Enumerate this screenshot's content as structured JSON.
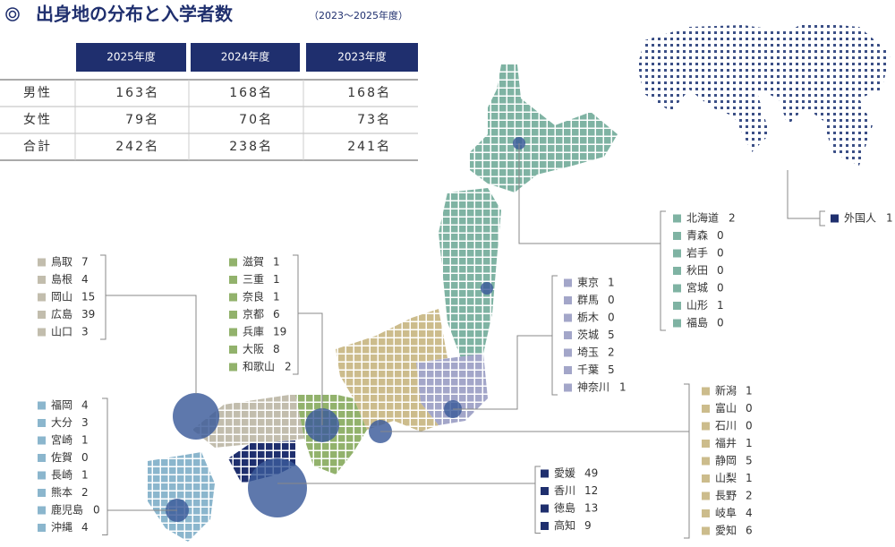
{
  "header": {
    "title": "出身地の分布と入学者数",
    "subtitle": "（2023～2025年度）"
  },
  "table": {
    "columns": [
      "2025年度",
      "2024年度",
      "2023年度"
    ],
    "rows": [
      [
        "男性",
        "163名",
        "168名",
        "168名"
      ],
      [
        "女性",
        "79名",
        "70名",
        "73名"
      ],
      [
        "合計",
        "242名",
        "238名",
        "241名"
      ]
    ]
  },
  "groups": [
    {
      "color": "#7fb3a3",
      "items": [
        [
          "北海道",
          2
        ],
        [
          "青森",
          0
        ],
        [
          "岩手",
          0
        ],
        [
          "秋田",
          0
        ],
        [
          "宮城",
          0
        ],
        [
          "山形",
          1
        ],
        [
          "福島",
          0
        ]
      ]
    },
    {
      "color": "#a3a6c9",
      "items": [
        [
          "東京",
          1
        ],
        [
          "群馬",
          0
        ],
        [
          "栃木",
          0
        ],
        [
          "茨城",
          5
        ],
        [
          "埼玉",
          2
        ],
        [
          "千葉",
          5
        ],
        [
          "神奈川",
          1
        ]
      ]
    },
    {
      "color": "#ccbc8c",
      "items": [
        [
          "新潟",
          1
        ],
        [
          "富山",
          0
        ],
        [
          "石川",
          0
        ],
        [
          "福井",
          1
        ],
        [
          "静岡",
          5
        ],
        [
          "山梨",
          1
        ],
        [
          "長野",
          2
        ],
        [
          "岐阜",
          4
        ],
        [
          "愛知",
          6
        ]
      ]
    },
    {
      "color": "#92b26c",
      "items": [
        [
          "滋賀",
          1
        ],
        [
          "三重",
          1
        ],
        [
          "奈良",
          1
        ],
        [
          "京都",
          6
        ],
        [
          "兵庫",
          19
        ],
        [
          "大阪",
          8
        ],
        [
          "和歌山",
          2
        ]
      ]
    },
    {
      "color": "#c2bdad",
      "items": [
        [
          "鳥取",
          7
        ],
        [
          "島根",
          4
        ],
        [
          "岡山",
          15
        ],
        [
          "広島",
          39
        ],
        [
          "山口",
          3
        ]
      ]
    },
    {
      "color": "#1f2f6e",
      "items": [
        [
          "愛媛",
          49
        ],
        [
          "香川",
          12
        ],
        [
          "徳島",
          13
        ],
        [
          "高知",
          9
        ]
      ]
    },
    {
      "color": "#8bb6cd",
      "items": [
        [
          "福岡",
          4
        ],
        [
          "大分",
          3
        ],
        [
          "宮崎",
          1
        ],
        [
          "佐賀",
          0
        ],
        [
          "長崎",
          1
        ],
        [
          "熊本",
          2
        ],
        [
          "鹿児島",
          0
        ],
        [
          "沖縄",
          4
        ]
      ]
    },
    {
      "color": "#1f2f6e",
      "items": [
        [
          "外国人",
          1
        ]
      ]
    }
  ]
}
